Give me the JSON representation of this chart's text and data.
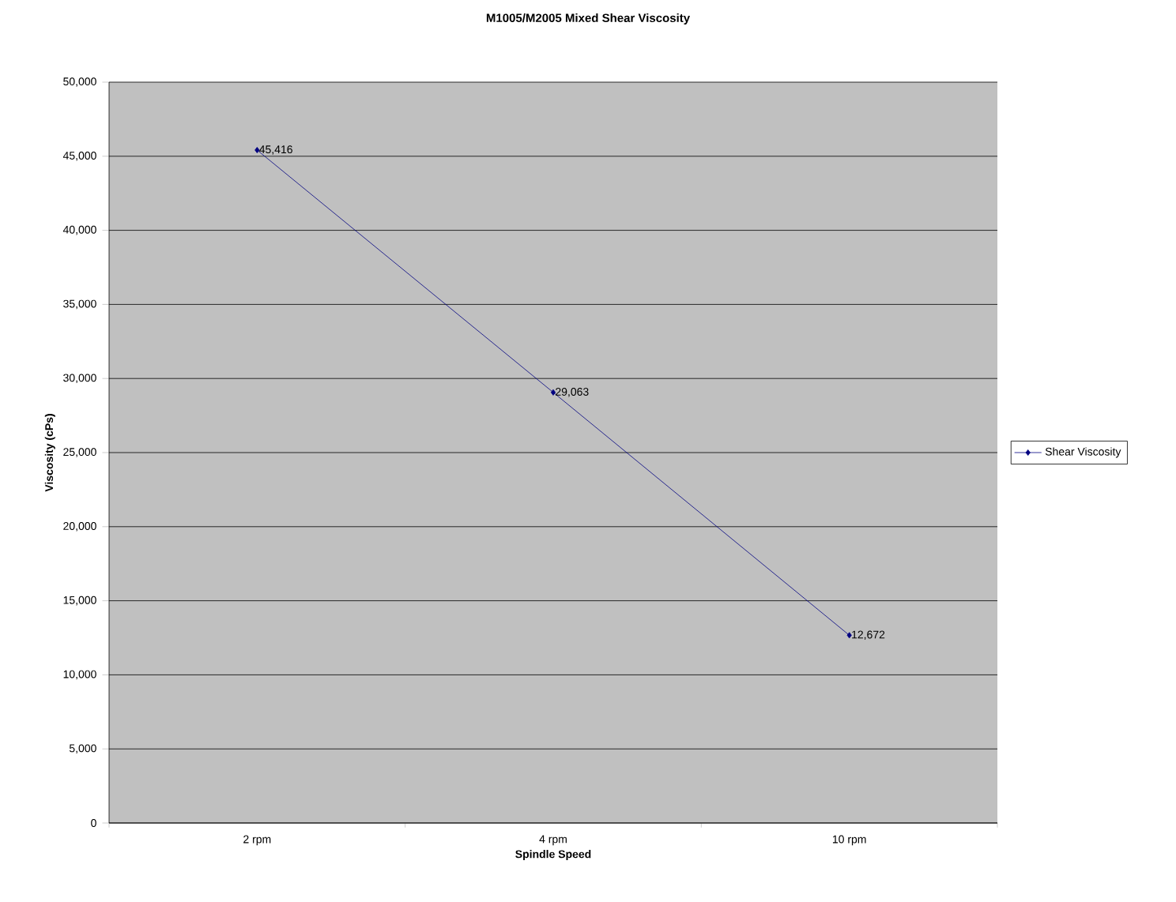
{
  "chart_data": {
    "type": "line",
    "title": "M1005/M2005 Mixed Shear Viscosity",
    "xlabel": "Spindle Speed",
    "ylabel": "Viscosity (cPs)",
    "categories": [
      "2 rpm",
      "4 rpm",
      "10 rpm"
    ],
    "series": [
      {
        "name": "Shear Viscosity",
        "color": "#000080",
        "values": [
          45416,
          29063,
          12672
        ],
        "value_labels": [
          "45,416",
          "29,063",
          "12,672"
        ]
      }
    ],
    "ylim": [
      0,
      50000
    ],
    "yticks": [
      {
        "value": 0,
        "label": "0"
      },
      {
        "value": 5000,
        "label": "5,000"
      },
      {
        "value": 10000,
        "label": "10,000"
      },
      {
        "value": 15000,
        "label": "15,000"
      },
      {
        "value": 20000,
        "label": "20,000"
      },
      {
        "value": 25000,
        "label": "25,000"
      },
      {
        "value": 30000,
        "label": "30,000"
      },
      {
        "value": 35000,
        "label": "35,000"
      },
      {
        "value": 40000,
        "label": "40,000"
      },
      {
        "value": 45000,
        "label": "45,000"
      },
      {
        "value": 50000,
        "label": "50,000"
      }
    ],
    "grid": "y",
    "legend": "right",
    "marker": "diamond",
    "line_style": "solid"
  }
}
